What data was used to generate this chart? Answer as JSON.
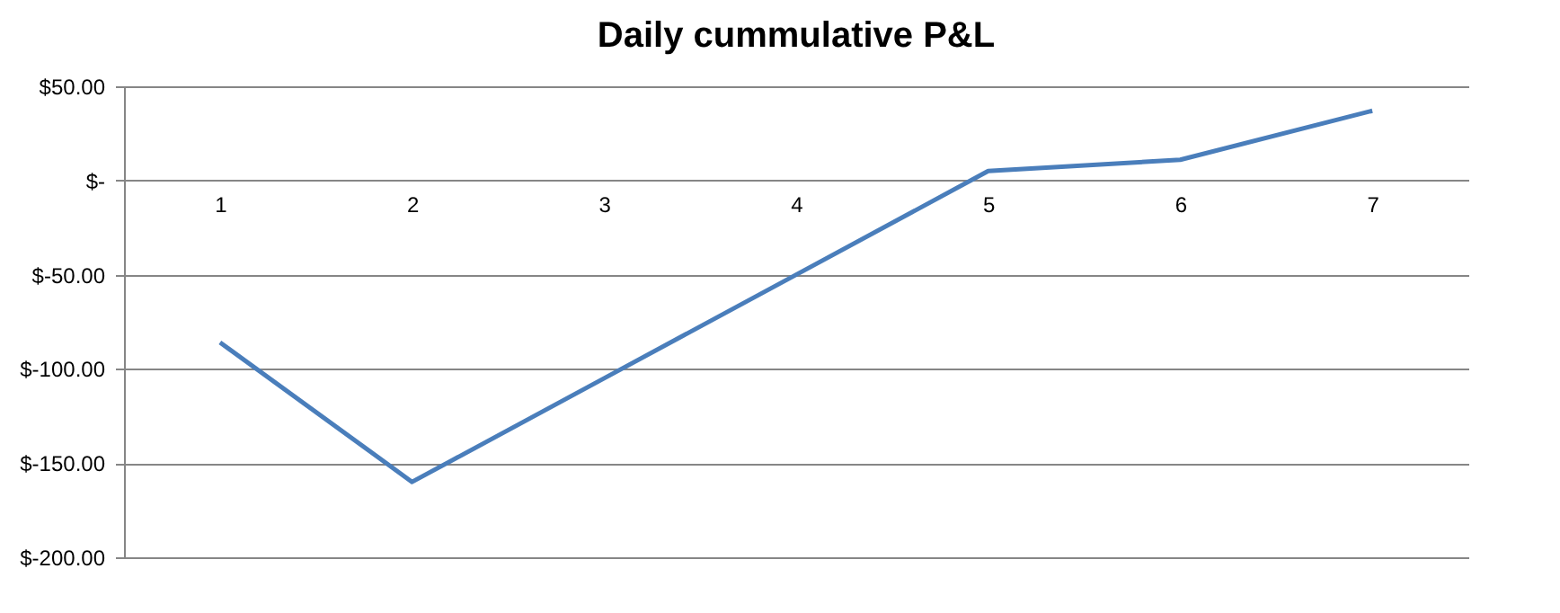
{
  "chart_data": {
    "type": "line",
    "title": "Daily cummulative P&L",
    "categories": [
      "1",
      "2",
      "3",
      "4",
      "5",
      "6",
      "7"
    ],
    "series": [
      {
        "color": "#4a7ebb",
        "values": [
          -86,
          -160,
          -105,
          -50,
          5,
          11,
          37
        ]
      }
    ],
    "ylim": [
      -200,
      50
    ],
    "yticks": [
      {
        "value": 50,
        "label": "$50.00"
      },
      {
        "value": 0,
        "label": "$-"
      },
      {
        "value": -50,
        "label": "$-50.00"
      },
      {
        "value": -100,
        "label": "$-100.00"
      },
      {
        "value": -150,
        "label": "$-150.00"
      },
      {
        "value": -200,
        "label": "$-200.00"
      }
    ],
    "grid": "y",
    "legend": false,
    "marker": "none",
    "line_style": "solid"
  }
}
